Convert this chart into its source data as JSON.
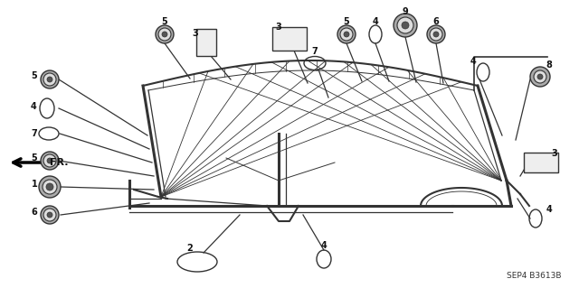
{
  "bg_color": "#ffffff",
  "title_text": "SEP4 B3613B",
  "figsize": [
    6.4,
    3.19
  ],
  "dpi": 100
}
